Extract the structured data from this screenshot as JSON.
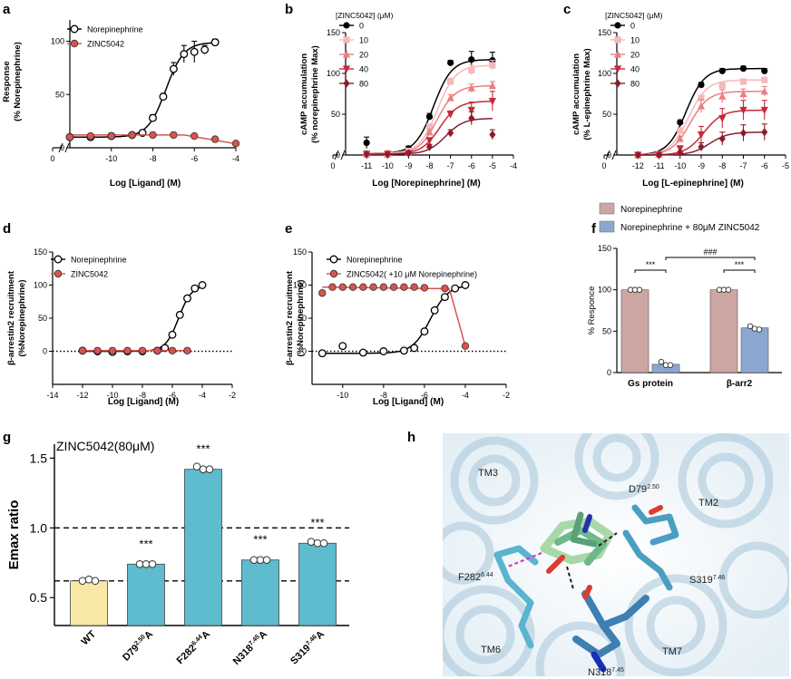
{
  "panel_labels": {
    "a": "a",
    "b": "b",
    "c": "c",
    "d": "d",
    "e": "e",
    "f": "f",
    "g": "g",
    "h": "h"
  },
  "chart_data": [
    {
      "id": "a",
      "type": "scatter",
      "xlabel": "Log [Ligand] (M)",
      "ylabel": [
        "Response",
        "(% Norepinephrine)"
      ],
      "xlim": [
        -12,
        -4
      ],
      "ylim": [
        0,
        120
      ],
      "axis_break": true,
      "xticks": [
        0,
        -10,
        -8,
        -6,
        -4
      ],
      "yticks": [
        0,
        50,
        100
      ],
      "legend": "top-left",
      "series": [
        {
          "name": "Norepinephrine",
          "marker": "open-circle",
          "color": "#000000",
          "x": [
            -12,
            -11,
            -10,
            -9,
            -8.5,
            -8,
            -7.5,
            -7,
            -6.5,
            -6,
            -5.5,
            -5
          ],
          "y": [
            10,
            10,
            11,
            12,
            14,
            28,
            48,
            74,
            88,
            90,
            92,
            99
          ],
          "err": [
            0,
            0,
            0,
            0,
            0,
            3,
            3,
            6,
            8,
            10,
            4,
            3
          ]
        },
        {
          "name": "ZINC5042",
          "marker": "red-circle",
          "color": "#d9534f",
          "x": [
            -12,
            -11,
            -10,
            -9,
            -8,
            -7,
            -6,
            -5,
            -4
          ],
          "y": [
            10,
            11,
            11,
            12,
            12,
            12,
            11,
            8,
            4
          ]
        }
      ]
    },
    {
      "id": "b",
      "type": "scatter",
      "xlabel": "Log [Norepinephrine] (M)",
      "ylabel": [
        "cAMP accumulation",
        "(% norepinephrine Max)"
      ],
      "xlim": [
        -12,
        -4
      ],
      "ylim": [
        0,
        150
      ],
      "axis_break": true,
      "xticks": [
        0,
        -11,
        -10,
        -9,
        -8,
        -7,
        -6,
        -5,
        -4
      ],
      "yticks": [
        0,
        50,
        100,
        150
      ],
      "legend_title": "[ZINC5042] (μM)",
      "legend": "top-left",
      "series": [
        {
          "name": "0",
          "color": "#000000",
          "marker": "circle",
          "x": [
            -11,
            -10,
            -9,
            -8,
            -7,
            -6,
            -5
          ],
          "y": [
            15,
            2,
            8,
            47,
            113,
            117,
            116
          ],
          "err": [
            7,
            0,
            3,
            4,
            3,
            10,
            10
          ]
        },
        {
          "name": "10",
          "color": "#f4b9b9",
          "marker": "square",
          "x": [
            -11,
            -10,
            -9,
            -8,
            -7,
            -6,
            -5
          ],
          "y": [
            2,
            2,
            5,
            35,
            90,
            104,
            110
          ],
          "err": [
            0,
            0,
            2,
            3,
            4,
            6,
            6
          ]
        },
        {
          "name": "20",
          "color": "#ec7f7f",
          "marker": "triangle",
          "x": [
            -11,
            -10,
            -9,
            -8,
            -7,
            -6,
            -5
          ],
          "y": [
            1,
            1,
            3,
            28,
            70,
            82,
            85
          ],
          "err": [
            0,
            0,
            2,
            3,
            4,
            5,
            5
          ]
        },
        {
          "name": "40",
          "color": "#c8283a",
          "marker": "triangle-down",
          "x": [
            -11,
            -10,
            -9,
            -8,
            -7,
            -6,
            -5
          ],
          "y": [
            1,
            1,
            2,
            18,
            50,
            55,
            66
          ],
          "err": [
            0,
            0,
            2,
            3,
            4,
            10,
            12
          ]
        },
        {
          "name": "80",
          "color": "#8b1d2e",
          "marker": "diamond",
          "x": [
            -11,
            -10,
            -9,
            -8,
            -7,
            -6,
            -5
          ],
          "y": [
            1,
            1,
            2,
            10,
            27,
            45,
            25
          ],
          "err": [
            0,
            0,
            1,
            3,
            4,
            8,
            6
          ]
        }
      ]
    },
    {
      "id": "c",
      "type": "scatter",
      "xlabel": "Log [L-epinephrine] (M)",
      "ylabel": [
        "cAMP accumulation",
        "(% L-epinephrine Max)"
      ],
      "xlim": [
        -13,
        -5
      ],
      "ylim": [
        0,
        150
      ],
      "axis_break": true,
      "xticks": [
        0,
        -12,
        -11,
        -10,
        -9,
        -8,
        -7,
        -6,
        -5
      ],
      "yticks": [
        0,
        50,
        100,
        150
      ],
      "legend_title": "[ZINC5042] (μM)",
      "legend": "top-left",
      "series": [
        {
          "name": "0",
          "color": "#000000",
          "marker": "circle",
          "x": [
            -12,
            -11,
            -10,
            -9,
            -8,
            -7,
            -6
          ],
          "y": [
            0,
            2,
            40,
            86,
            103,
            106,
            103
          ],
          "err": [
            0,
            0,
            3,
            3,
            3,
            3,
            3
          ]
        },
        {
          "name": "10",
          "color": "#f4b9b9",
          "marker": "square",
          "x": [
            -12,
            -11,
            -10,
            -9,
            -8,
            -7,
            -6
          ],
          "y": [
            0,
            1,
            30,
            70,
            85,
            90,
            92
          ],
          "err": [
            0,
            0,
            3,
            3,
            3,
            3,
            3
          ]
        },
        {
          "name": "20",
          "color": "#ec7f7f",
          "marker": "triangle",
          "x": [
            -12,
            -11,
            -10,
            -9,
            -8,
            -7,
            -6
          ],
          "y": [
            0,
            1,
            20,
            60,
            72,
            75,
            78
          ],
          "err": [
            0,
            0,
            3,
            8,
            8,
            6,
            6
          ]
        },
        {
          "name": "40",
          "color": "#c8283a",
          "marker": "triangle-down",
          "x": [
            -12,
            -11,
            -10,
            -9,
            -8,
            -7,
            -6
          ],
          "y": [
            0,
            0,
            8,
            25,
            45,
            55,
            55
          ],
          "err": [
            0,
            0,
            3,
            10,
            12,
            12,
            12
          ]
        },
        {
          "name": "80",
          "color": "#8b1d2e",
          "marker": "diamond",
          "x": [
            -12,
            -11,
            -10,
            -9,
            -8,
            -7,
            -6
          ],
          "y": [
            0,
            0,
            3,
            10,
            20,
            27,
            28
          ],
          "err": [
            0,
            0,
            2,
            5,
            8,
            10,
            10
          ]
        }
      ]
    },
    {
      "id": "d",
      "type": "scatter",
      "xlabel": "Log [Ligand] (M)",
      "ylabel": [
        "β-arrestin2 recruitment",
        "(%Norepinephrine)"
      ],
      "xlim": [
        -14,
        -2
      ],
      "ylim": [
        -50,
        150
      ],
      "baseline": 0,
      "xticks": [
        -14,
        -12,
        -10,
        -8,
        -6,
        -4,
        -2
      ],
      "yticks": [
        0,
        50,
        100,
        150
      ],
      "legend": "top-left",
      "series": [
        {
          "name": "Norepinephrine",
          "marker": "open-circle",
          "color": "#000000",
          "x": [
            -12,
            -11,
            -10,
            -9,
            -8,
            -7,
            -6.5,
            -6,
            -5.5,
            -5,
            -4.5,
            -4
          ],
          "y": [
            1,
            0,
            -1,
            0,
            0,
            1,
            5,
            25,
            55,
            80,
            95,
            100
          ]
        },
        {
          "name": "ZINC5042",
          "marker": "red-circle",
          "color": "#d9534f",
          "x": [
            -12,
            -11,
            -10,
            -9,
            -8,
            -7,
            -6,
            -5
          ],
          "y": [
            1,
            1,
            1,
            1,
            1,
            1,
            1,
            1
          ]
        }
      ]
    },
    {
      "id": "e",
      "type": "scatter",
      "xlabel": "Log [Ligand] (M)",
      "ylabel": [
        "β-arrestin2 recruitment",
        "(%Norepinephrine)"
      ],
      "xlim": [
        -11.5,
        -2
      ],
      "ylim": [
        -50,
        150
      ],
      "baseline": 0,
      "xticks": [
        -10,
        -8,
        -6,
        -4,
        -2
      ],
      "yticks": [
        0,
        50,
        100,
        150
      ],
      "legend": "top-left",
      "series": [
        {
          "name": "Norepinephrine",
          "marker": "open-circle",
          "color": "#000000",
          "x": [
            -11,
            -10,
            -9,
            -8,
            -7,
            -6.5,
            -6,
            -5.5,
            -5,
            -4.5,
            -4
          ],
          "y": [
            -3,
            8,
            -2,
            0,
            1,
            5,
            30,
            62,
            82,
            95,
            100
          ]
        },
        {
          "name": "ZINC5042( +10 μM Norepinephrine)",
          "marker": "red-circle",
          "color": "#d9534f",
          "x": [
            -11,
            -10.5,
            -10,
            -9.5,
            -9,
            -8.5,
            -8,
            -7.5,
            -7,
            -6.5,
            -6,
            -5,
            -4
          ],
          "y": [
            88,
            97,
            97,
            97,
            97,
            97,
            97,
            97,
            97,
            97,
            96,
            95,
            8
          ]
        }
      ]
    },
    {
      "id": "f",
      "type": "bar",
      "ylabel": "% Responce",
      "ylim": [
        0,
        150
      ],
      "yticks": [
        0,
        50,
        100,
        150
      ],
      "categories": [
        "Gs protein",
        "β-arr2"
      ],
      "series": [
        {
          "name": "Norepinephrine",
          "color": "#cda5a3",
          "values": [
            100,
            100
          ],
          "points": [
            [
              100,
              100,
              100
            ],
            [
              100,
              100,
              100
            ]
          ]
        },
        {
          "name": "Norepinephrine  + 80μM ZINC5042",
          "color": "#8ca7cf",
          "values": [
            10,
            54
          ],
          "points": [
            [
              13,
              9,
              9
            ],
            [
              56,
              53,
              52
            ]
          ]
        }
      ],
      "annotations": [
        "***",
        "###",
        "***"
      ]
    },
    {
      "id": "g",
      "type": "bar",
      "title": "ZINC5042(80μM)",
      "ylabel": "Emax ratio",
      "ylim": [
        0.3,
        1.6
      ],
      "yticks": [
        0.5,
        1.0,
        1.5
      ],
      "reference_lines": [
        1.0,
        0.62
      ],
      "categories": [
        "WT",
        "D79",
        "F282",
        "N318",
        "S319"
      ],
      "superscripts": [
        "",
        "2.50",
        "6.44",
        "7.45",
        "7.46"
      ],
      "suffix": "A",
      "values": [
        0.62,
        0.74,
        1.42,
        0.77,
        0.89
      ],
      "points": [
        [
          0.62,
          0.63,
          0.62
        ],
        [
          0.74,
          0.74,
          0.74
        ],
        [
          1.44,
          1.42,
          1.42
        ],
        [
          0.77,
          0.77,
          0.77
        ],
        [
          0.9,
          0.89,
          0.89
        ]
      ],
      "colors": [
        "#f8e8a6",
        "#5fbccf",
        "#5fbccf",
        "#5fbccf",
        "#5fbccf"
      ],
      "significance": [
        "",
        "***",
        "***",
        "***",
        "***"
      ]
    }
  ],
  "structure_h": {
    "labels": {
      "tm3": "TM3",
      "tm2": "TM2",
      "tm6": "TM6",
      "tm7": "TM7"
    },
    "residues": [
      {
        "base": "D79",
        "sup": "2.50"
      },
      {
        "base": "F282",
        "sup": "6.44"
      },
      {
        "base": "S319",
        "sup": "7.46"
      },
      {
        "base": "N318",
        "sup": "7.45"
      }
    ]
  }
}
